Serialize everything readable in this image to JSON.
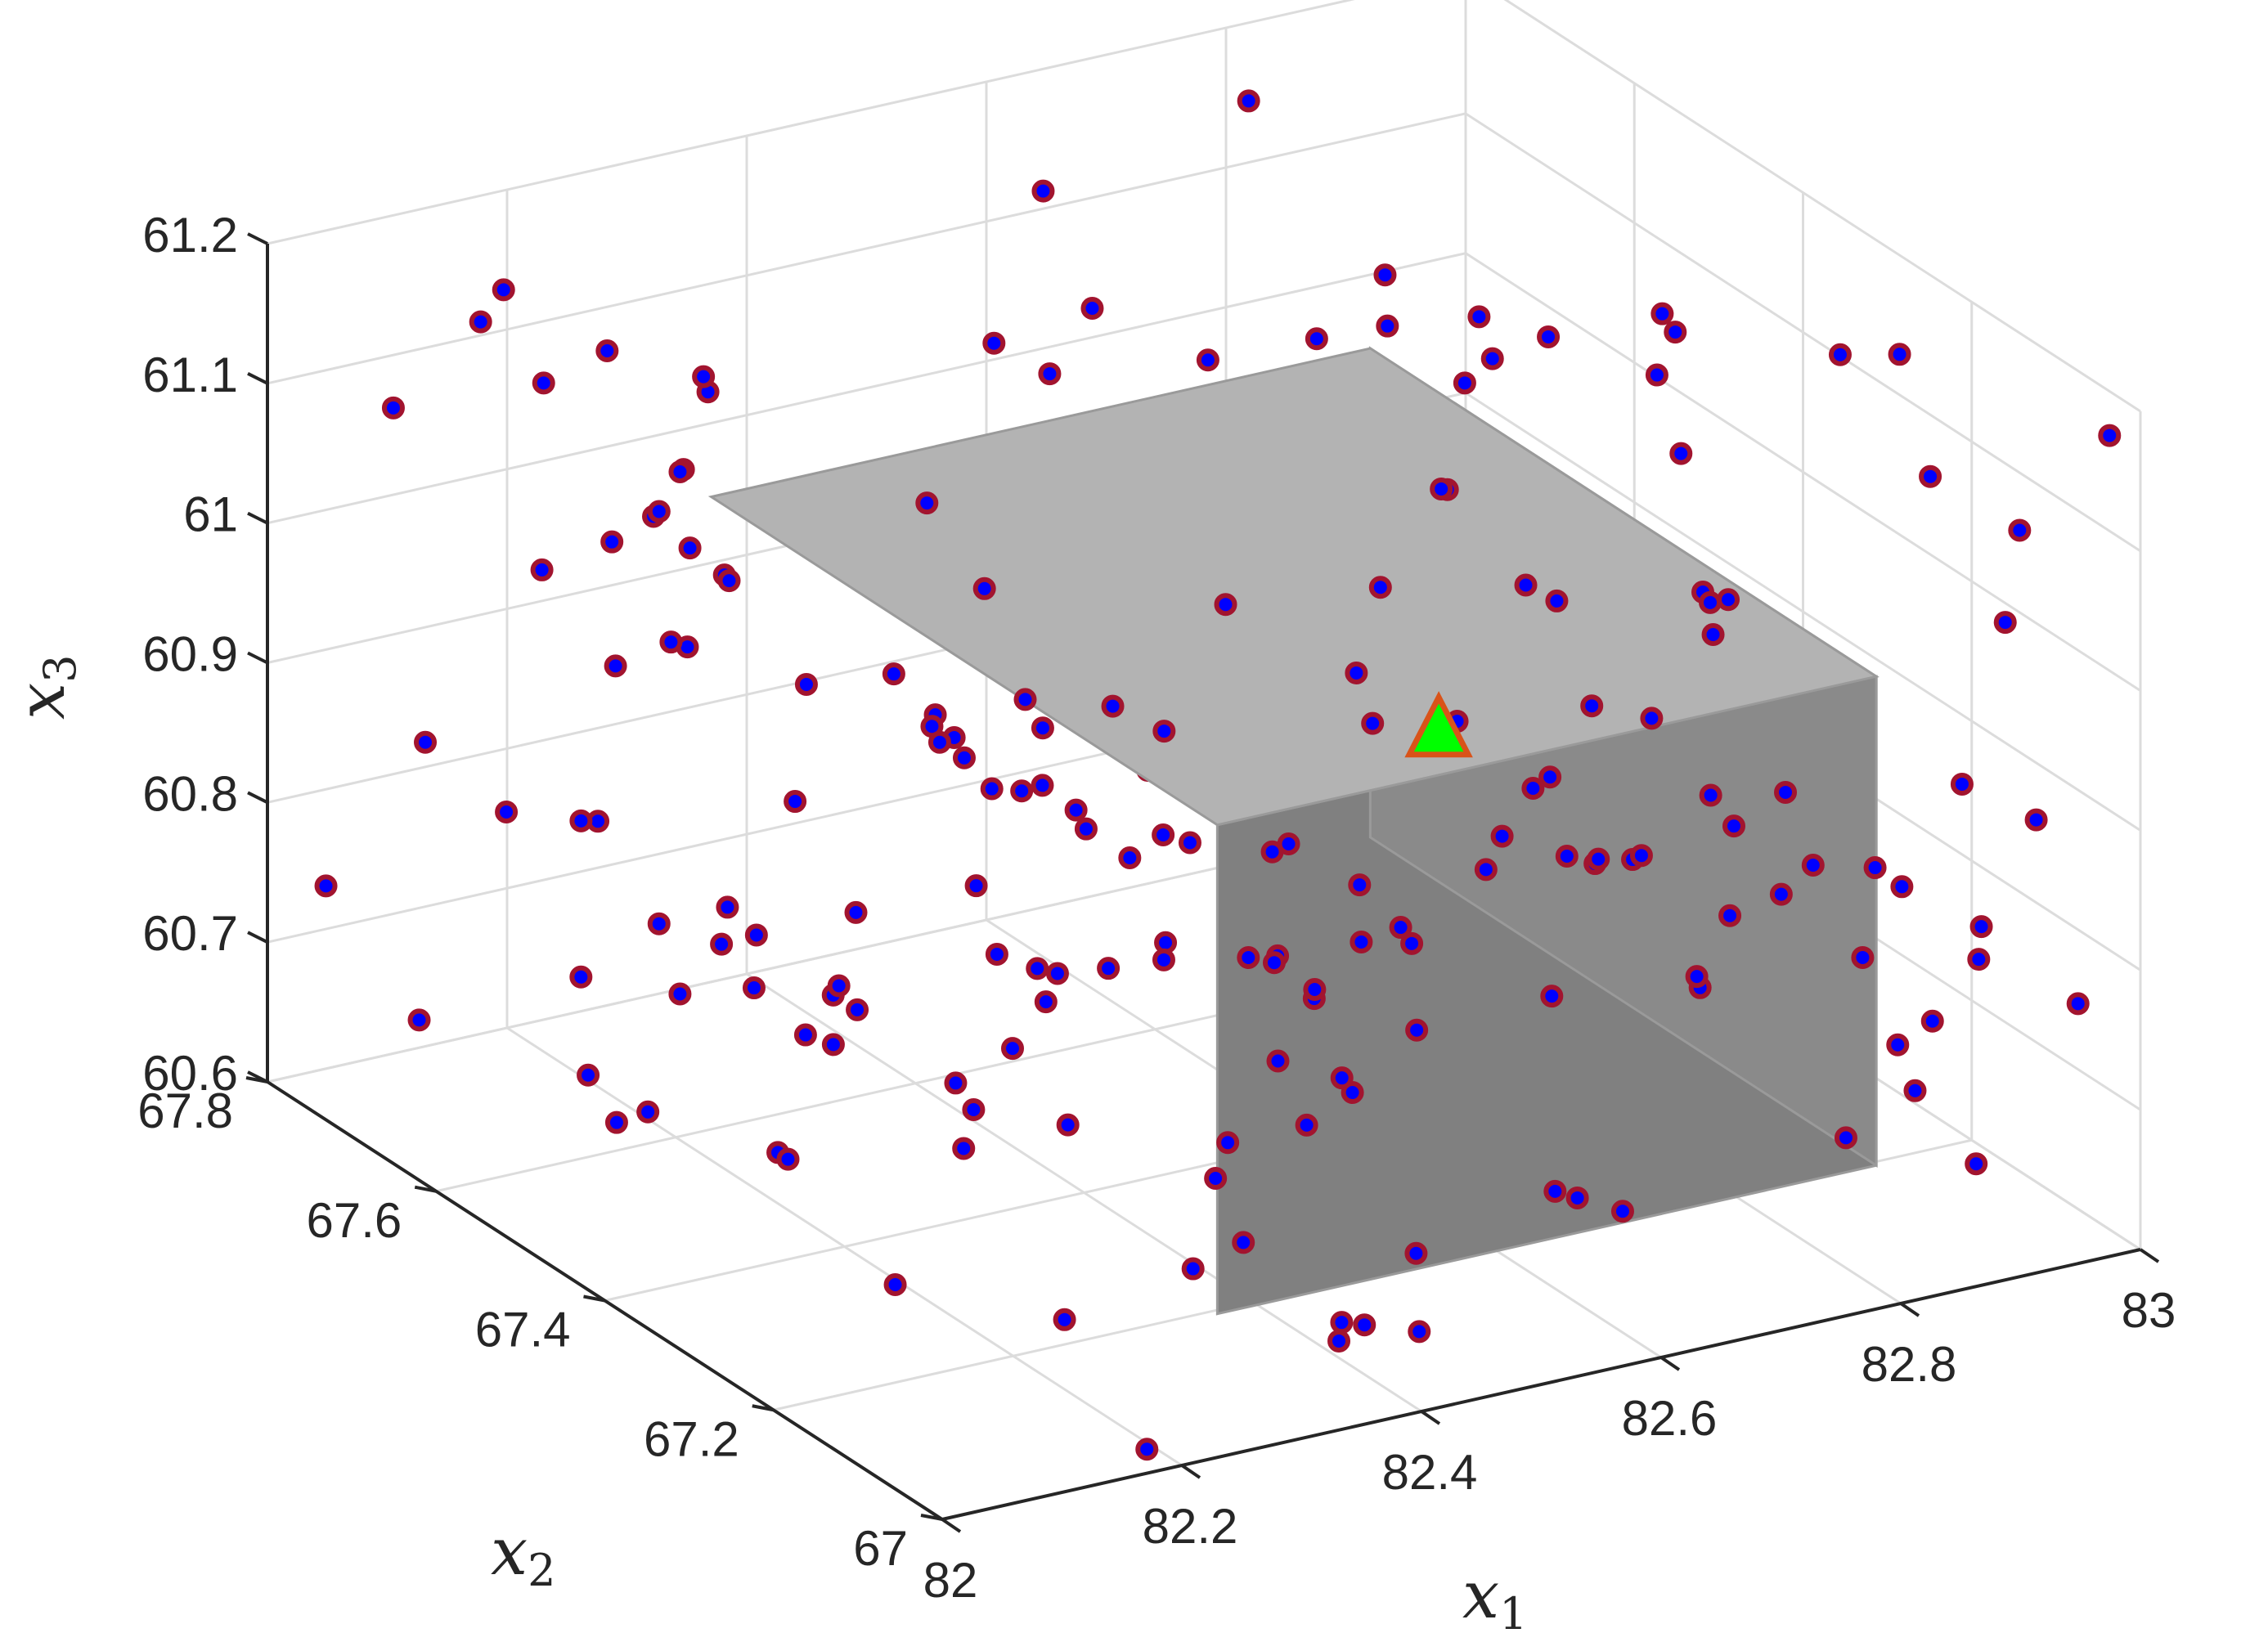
{
  "chart_data": {
    "type": "scatter",
    "view": "3d",
    "grid": true,
    "axes": {
      "x1": {
        "label": "x",
        "sub": "1",
        "range": [
          82,
          83
        ],
        "ticks": [
          "82",
          "82.2",
          "82.4",
          "82.6",
          "82.8",
          "83"
        ]
      },
      "x2": {
        "label": "x",
        "sub": "2",
        "range": [
          67,
          67.8
        ],
        "ticks": [
          "67",
          "67.2",
          "67.4",
          "67.6",
          "67.8"
        ]
      },
      "x3": {
        "label": "x",
        "sub": "3",
        "range": [
          60.6,
          61.2
        ],
        "ticks": [
          "60.6",
          "60.7",
          "60.8",
          "60.9",
          "61",
          "61.1",
          "61.2"
        ]
      }
    },
    "box": {
      "x1": [
        82.3,
        82.85
      ],
      "x2": [
        67.1,
        67.7
      ],
      "x3": [
        60.65,
        61.0
      ],
      "top_color": "#b3b3b3",
      "side_color": "#808080"
    },
    "marker": {
      "point": [
        82.52,
        67.15,
        61.0
      ],
      "fill": "#00ff00",
      "edge": "#d95319"
    },
    "samples": {
      "count": 220,
      "seed": 7,
      "x1": [
        82,
        83
      ],
      "x2": [
        67,
        67.8
      ],
      "x3": [
        60.6,
        61.2
      ],
      "fill": "#0000ff",
      "edge": "#a2142f"
    }
  }
}
